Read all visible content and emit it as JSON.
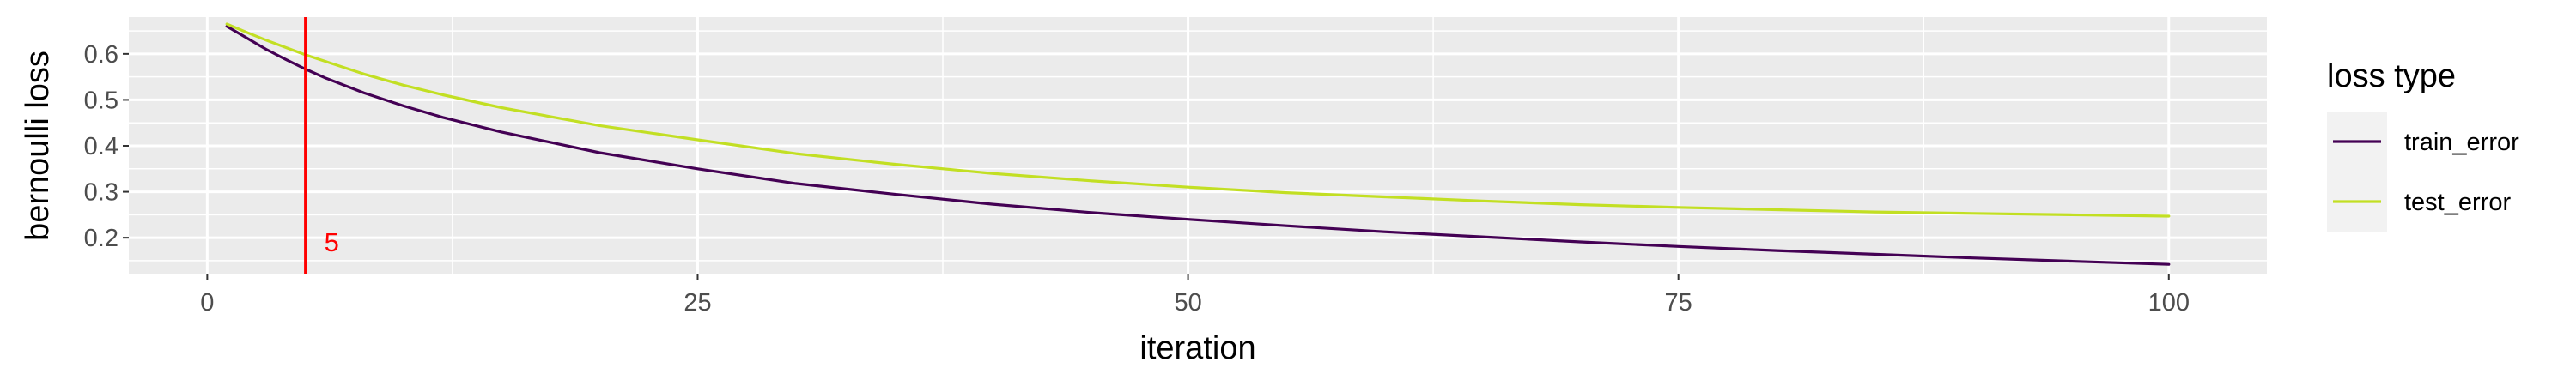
{
  "chart_data": {
    "type": "line",
    "title": "",
    "xlabel": "iteration",
    "ylabel": "bernoulli loss",
    "xlim": [
      -4,
      105
    ],
    "ylim": [
      0.12,
      0.68
    ],
    "x_ticks": [
      0,
      25,
      50,
      75,
      100
    ],
    "x_tick_labels": [
      "0",
      "25",
      "50",
      "75",
      "100"
    ],
    "y_ticks": [
      0.2,
      0.3,
      0.4,
      0.5,
      0.6
    ],
    "y_tick_labels": [
      "0.2",
      "0.3",
      "0.4",
      "0.5",
      "0.6"
    ],
    "grid": true,
    "legend": {
      "title": "loss type",
      "position": "right",
      "entries": [
        "train_error",
        "test_error"
      ]
    },
    "series": [
      {
        "name": "train_error",
        "color": "#440154",
        "x": [
          1,
          2,
          3,
          4,
          5,
          6,
          8,
          10,
          12,
          15,
          20,
          25,
          30,
          35,
          40,
          45,
          50,
          55,
          60,
          65,
          70,
          75,
          80,
          85,
          90,
          95,
          100
        ],
        "values": [
          0.66,
          0.635,
          0.61,
          0.588,
          0.567,
          0.548,
          0.515,
          0.487,
          0.462,
          0.43,
          0.385,
          0.35,
          0.318,
          0.295,
          0.273,
          0.255,
          0.24,
          0.226,
          0.213,
          0.202,
          0.191,
          0.181,
          0.172,
          0.164,
          0.156,
          0.149,
          0.142
        ]
      },
      {
        "name": "test_error",
        "color": "#C2DF23",
        "x": [
          1,
          2,
          3,
          4,
          5,
          6,
          8,
          10,
          12,
          15,
          20,
          25,
          30,
          35,
          40,
          45,
          50,
          55,
          60,
          65,
          70,
          75,
          80,
          85,
          90,
          95,
          100
        ],
        "values": [
          0.665,
          0.647,
          0.63,
          0.614,
          0.598,
          0.584,
          0.556,
          0.532,
          0.511,
          0.483,
          0.444,
          0.413,
          0.383,
          0.36,
          0.34,
          0.324,
          0.31,
          0.298,
          0.289,
          0.28,
          0.272,
          0.266,
          0.261,
          0.256,
          0.253,
          0.25,
          0.247
        ]
      }
    ],
    "annotations": [
      {
        "type": "vline",
        "x": 5,
        "color": "#FF0000",
        "label": "5"
      }
    ]
  }
}
